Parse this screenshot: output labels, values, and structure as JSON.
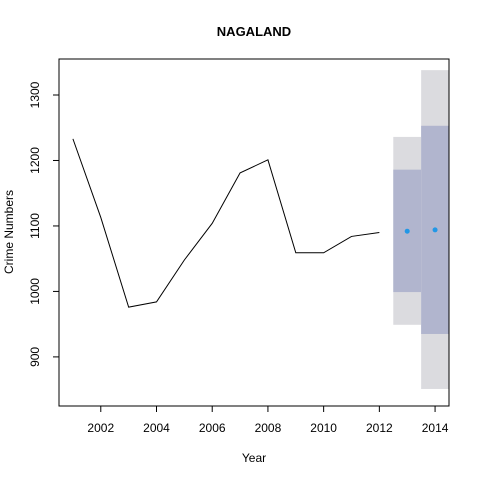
{
  "chart_data": {
    "type": "line",
    "title": "NAGALAND",
    "xlabel": "Year",
    "ylabel": "Crime Numbers",
    "xlim": [
      2000.5,
      2014.5
    ],
    "ylim": [
      825,
      1355
    ],
    "x_ticks": [
      2002,
      2004,
      2006,
      2008,
      2010,
      2012,
      2014
    ],
    "y_ticks": [
      900,
      1000,
      1100,
      1200,
      1300
    ],
    "grid": false,
    "legend": "none",
    "series": [
      {
        "x": [
          2001,
          2002,
          2003,
          2004,
          2005,
          2006,
          2007,
          2008,
          2009,
          2010,
          2011,
          2012
        ],
        "values": [
          1233,
          1113,
          976,
          984,
          1048,
          1104,
          1181,
          1201,
          1059,
          1059,
          1084,
          1090
        ]
      }
    ],
    "forecast": {
      "x": [
        2013,
        2014
      ],
      "values": [
        1092,
        1094
      ],
      "lo80": [
        999,
        935
      ],
      "hi80": [
        1186,
        1253
      ],
      "lo95": [
        949,
        851
      ],
      "hi95": [
        1236,
        1338
      ]
    },
    "colors": {
      "line": "#000000",
      "point": "#2297e6",
      "band80": "#b1b5ce",
      "band95": "#dbdbdf"
    }
  }
}
